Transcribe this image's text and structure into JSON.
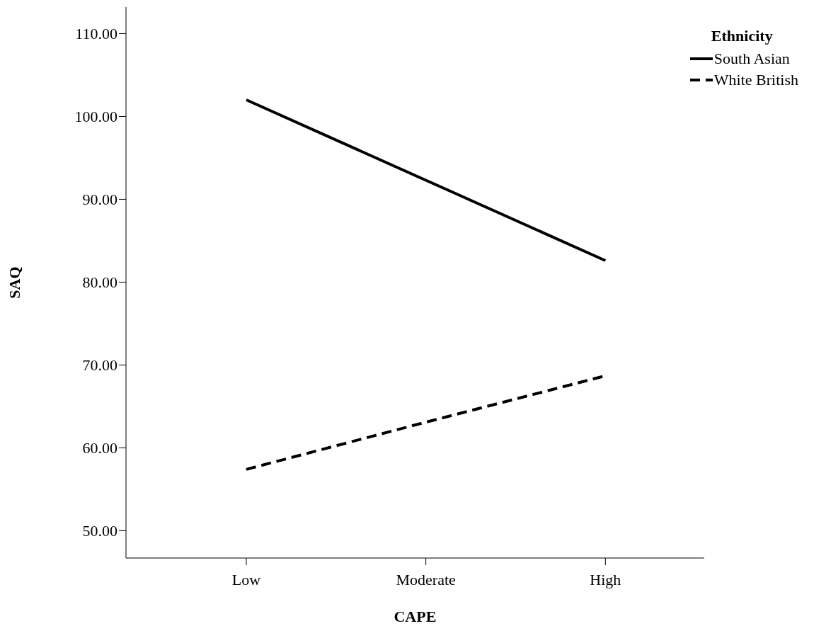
{
  "chart_data": {
    "type": "line",
    "xlabel": "CAPE",
    "ylabel": "SAQ",
    "legend_title": "Ethnicity",
    "categories": [
      "Low",
      "Moderate",
      "High"
    ],
    "series": [
      {
        "name": "South Asian",
        "color": "#000000",
        "line_style": "solid",
        "values": [
          102.0,
          92.3,
          82.6
        ]
      },
      {
        "name": "White British",
        "color": "#000000",
        "line_style": "dashed",
        "values": [
          57.4,
          63.1,
          68.7
        ]
      }
    ],
    "ylim": [
      46.7,
      113.2
    ],
    "yticks": [
      {
        "value": 50,
        "label": "50.00"
      },
      {
        "value": 60,
        "label": "60.00"
      },
      {
        "value": 70,
        "label": "70.00"
      },
      {
        "value": 80,
        "label": "80.00"
      },
      {
        "value": 90,
        "label": "90.00"
      },
      {
        "value": 100,
        "label": "100.00"
      },
      {
        "value": 110,
        "label": "110.00"
      }
    ],
    "grid": false,
    "legend": "top right",
    "marker": "none"
  }
}
